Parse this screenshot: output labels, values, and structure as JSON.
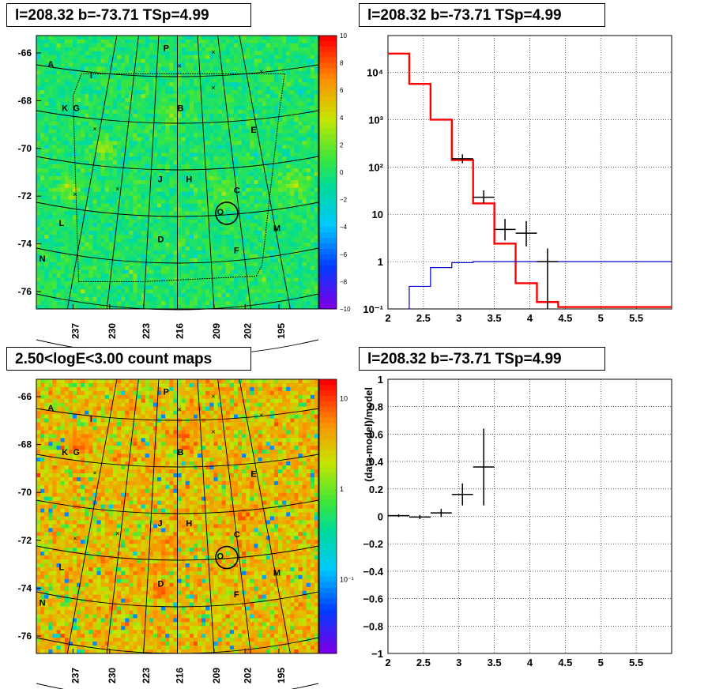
{
  "colors": {
    "model_line": "#ff0000",
    "background_model": "#0000cc",
    "data_points": "#000000",
    "grid": "#000000"
  },
  "panels": {
    "top_left": {
      "title": "l=208.32 b=-73.71 TSp=4.99"
    },
    "top_right": {
      "title": "l=208.32 b=-73.71 TSp=4.99"
    },
    "bottom_left": {
      "title": "2.50<logE<3.00 count maps"
    },
    "bottom_right": {
      "title": "l=208.32 b=-73.71 TSp=4.99"
    }
  },
  "chart_data": [
    {
      "type": "heatmap",
      "title": "l=208.32 b=-73.71 TSp=4.99",
      "x_ticks": [
        "237",
        "230",
        "223",
        "216",
        "209",
        "202",
        "195"
      ],
      "y_ticks": [
        "-66",
        "-68",
        "-70",
        "-72",
        "-74",
        "-76"
      ],
      "colorbar": {
        "scale": "linear",
        "range": [
          -10,
          10
        ],
        "ticks": [
          "10",
          "8",
          "6",
          "4",
          "2",
          "0",
          "−2",
          "−4",
          "−6",
          "−8",
          "−10"
        ]
      },
      "background_level": 0,
      "source_labels": [
        "P",
        "A",
        "I",
        "K",
        "G",
        "B",
        "E",
        "J",
        "H",
        "C",
        "D",
        "L",
        "M",
        "N",
        "F",
        "O"
      ],
      "marked_source": "O"
    },
    {
      "type": "line",
      "title": "l=208.32 b=-73.71 TSp=4.99",
      "x_range": [
        2,
        6
      ],
      "x_ticks": [
        "2",
        "2.5",
        "3",
        "3.5",
        "4",
        "4.5",
        "5",
        "5.5"
      ],
      "y_scale": "log",
      "y_range": [
        0.1,
        60000
      ],
      "y_ticks": [
        "10⁻¹",
        "1",
        "10",
        "10²",
        "10³",
        "10⁴"
      ],
      "series": [
        {
          "style": "step",
          "color": "#ff0000",
          "bin_edges": [
            2.0,
            2.3,
            2.6,
            2.9,
            3.2,
            3.5,
            3.8,
            4.1,
            4.4,
            6.0
          ],
          "values": [
            25000,
            5700,
            1000,
            140,
            17,
            2.4,
            0.35,
            0.14,
            0.11
          ]
        },
        {
          "style": "step",
          "color": "#0000cc",
          "bin_edges": [
            2.3,
            2.6,
            2.9,
            3.2,
            6.0
          ],
          "values": [
            0.3,
            0.75,
            0.95,
            1.0
          ]
        },
        {
          "style": "errorbar",
          "color": "#000000",
          "x": [
            3.05,
            3.35,
            3.65,
            3.95,
            4.25
          ],
          "xerr": [
            0.15,
            0.15,
            0.15,
            0.15,
            0.15
          ],
          "y": [
            150,
            23,
            4.8,
            4.0,
            1.0
          ],
          "ylo": [
            120,
            17,
            2.8,
            2.1,
            0.1
          ],
          "yhi": [
            185,
            32,
            8.0,
            7.2,
            1.9
          ]
        }
      ]
    },
    {
      "type": "heatmap",
      "title": "2.50<logE<3.00 count maps",
      "x_ticks": [
        "237",
        "230",
        "223",
        "216",
        "209",
        "202",
        "195"
      ],
      "y_ticks": [
        "-66",
        "-68",
        "-70",
        "-72",
        "-74",
        "-76"
      ],
      "colorbar": {
        "scale": "log",
        "ticks": [
          "10",
          "1",
          "10⁻¹"
        ]
      },
      "background_level": 5,
      "source_labels": [
        "P",
        "A",
        "I",
        "K",
        "G",
        "B",
        "E",
        "J",
        "H",
        "C",
        "D",
        "L",
        "M",
        "N",
        "F",
        "O"
      ],
      "marked_source": "O"
    },
    {
      "type": "scatter",
      "title": "l=208.32 b=-73.71 TSp=4.99",
      "ylabel": "(data-model)/model",
      "x_range": [
        2,
        6
      ],
      "x_ticks": [
        "2",
        "2.5",
        "3",
        "3.5",
        "4",
        "4.5",
        "5",
        "5.5"
      ],
      "y_range": [
        -1,
        1
      ],
      "y_ticks": [
        "1",
        "0.8",
        "0.6",
        "0.4",
        "0.2",
        "0",
        "−0.2",
        "−0.4",
        "−0.6",
        "−0.8",
        "−1"
      ],
      "points": [
        {
          "x": 2.15,
          "xerr": 0.15,
          "y": 0.005,
          "yerr": 0.01
        },
        {
          "x": 2.45,
          "xerr": 0.15,
          "y": -0.005,
          "yerr": 0.015
        },
        {
          "x": 2.75,
          "xerr": 0.15,
          "y": 0.025,
          "yerr": 0.03
        },
        {
          "x": 3.05,
          "xerr": 0.15,
          "y": 0.16,
          "yerr": 0.08
        },
        {
          "x": 3.35,
          "xerr": 0.15,
          "y": 0.36,
          "yerr": 0.28
        }
      ]
    }
  ]
}
